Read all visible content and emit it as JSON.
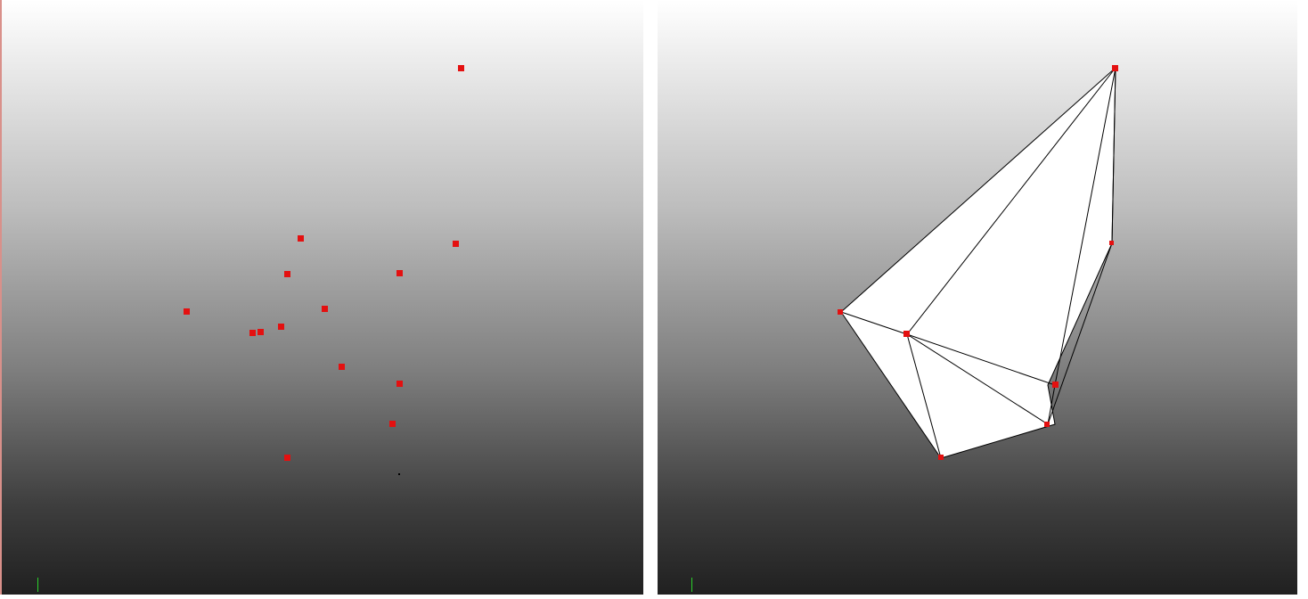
{
  "colors": {
    "point": "#e41010",
    "mesh_fill": "#ffffff",
    "mesh_edge": "#000000",
    "axis": "#2bd12b"
  },
  "views": {
    "left": {
      "title": "point-cloud-viewport"
    },
    "right": {
      "title": "convex-hull-viewport"
    }
  }
}
